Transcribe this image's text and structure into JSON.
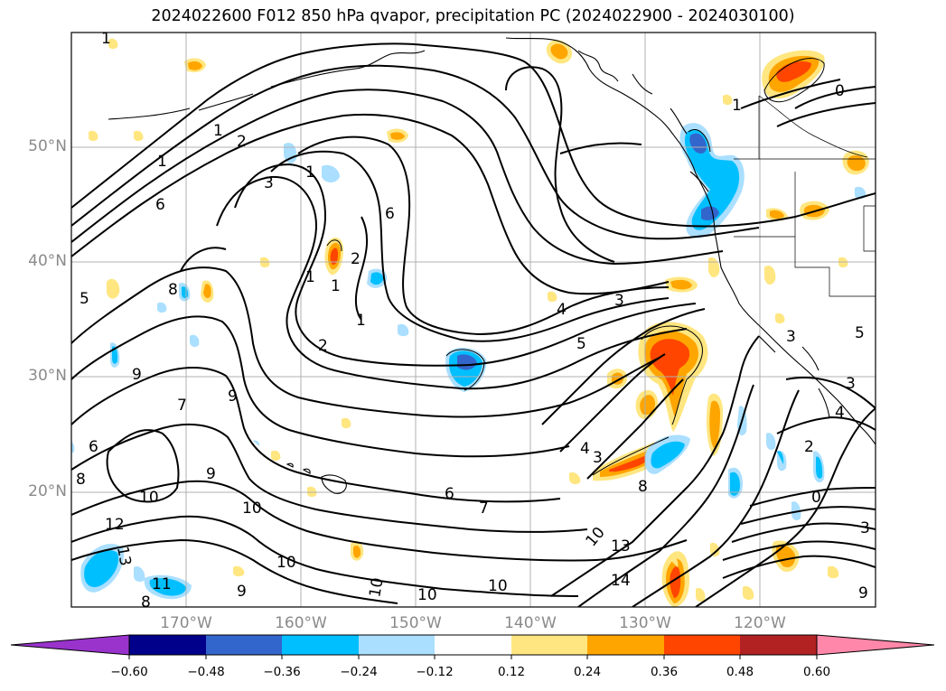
{
  "title": "2024022600 F012 850 hPa qvapor, precipitation PC (2024022900 - 2024030100)",
  "map": {
    "lat_labels": [
      "50°N",
      "40°N",
      "30°N",
      "20°N"
    ],
    "lon_labels": [
      "170°W",
      "160°W",
      "150°W",
      "140°W",
      "130°W",
      "120°W"
    ],
    "contour_labels": [
      {
        "text": "1"
      },
      {
        "text": "1"
      },
      {
        "text": "1"
      },
      {
        "text": "1"
      },
      {
        "text": "1"
      },
      {
        "text": "1"
      },
      {
        "text": "1"
      },
      {
        "text": "1"
      },
      {
        "text": "0"
      },
      {
        "text": "0"
      },
      {
        "text": "2"
      },
      {
        "text": "2"
      },
      {
        "text": "2"
      },
      {
        "text": "2"
      },
      {
        "text": "3"
      },
      {
        "text": "3"
      },
      {
        "text": "3"
      },
      {
        "text": "3"
      },
      {
        "text": "3"
      },
      {
        "text": "3"
      },
      {
        "text": "4"
      },
      {
        "text": "4"
      },
      {
        "text": "4"
      },
      {
        "text": "5"
      },
      {
        "text": "5"
      },
      {
        "text": "5"
      },
      {
        "text": "6"
      },
      {
        "text": "6"
      },
      {
        "text": "6"
      },
      {
        "text": "6"
      },
      {
        "text": "7"
      },
      {
        "text": "7"
      },
      {
        "text": "8"
      },
      {
        "text": "8"
      },
      {
        "text": "8"
      },
      {
        "text": "8"
      },
      {
        "text": "9"
      },
      {
        "text": "9"
      },
      {
        "text": "9"
      },
      {
        "text": "9"
      },
      {
        "text": "9"
      },
      {
        "text": "10"
      },
      {
        "text": "10"
      },
      {
        "text": "10"
      },
      {
        "text": "10"
      },
      {
        "text": "10"
      },
      {
        "text": "10"
      },
      {
        "text": "11"
      },
      {
        "text": "12"
      },
      {
        "text": "13"
      },
      {
        "text": "13"
      },
      {
        "text": "14"
      },
      {
        "text": "10"
      }
    ]
  },
  "colorbar": {
    "colors": [
      "#9933cc",
      "#00008b",
      "#3366cc",
      "#00bfff",
      "#aadfff",
      "#ffffff",
      "#ffe680",
      "#ffa500",
      "#ff4500",
      "#b22222",
      "#ff88aa"
    ],
    "ticks": [
      "−0.60",
      "−0.48",
      "−0.36",
      "−0.24",
      "−0.12",
      "0.12",
      "0.24",
      "0.36",
      "0.48",
      "0.60"
    ]
  }
}
